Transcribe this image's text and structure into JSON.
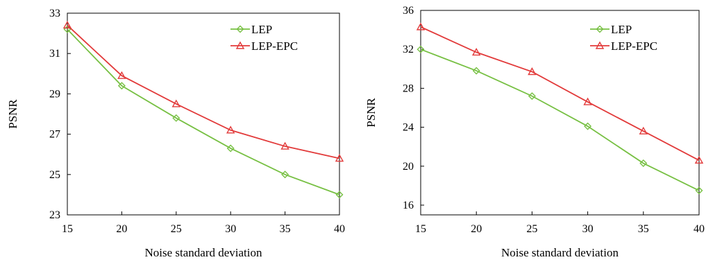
{
  "colors": {
    "lep": "#77c043",
    "lep_epc": "#e23a3a",
    "axis": "#000000"
  },
  "chart_data": [
    {
      "type": "line",
      "xlabel": "Noise standard deviation",
      "ylabel": "PSNR",
      "x": [
        15,
        20,
        25,
        30,
        35,
        40
      ],
      "xlim": [
        15,
        40
      ],
      "ylim": [
        23,
        33
      ],
      "xticks": [
        "15",
        "20",
        "25",
        "30",
        "35",
        "40"
      ],
      "yticks": [
        "23",
        "25",
        "27",
        "29",
        "31",
        "33"
      ],
      "grid": false,
      "legend_position": "top-right",
      "series": [
        {
          "name": "LEP",
          "marker": "diamond",
          "values": [
            32.2,
            29.4,
            27.8,
            26.3,
            25.0,
            24.0
          ]
        },
        {
          "name": "LEP-EPC",
          "marker": "triangle",
          "values": [
            32.4,
            29.9,
            28.5,
            27.2,
            26.4,
            25.8
          ]
        }
      ]
    },
    {
      "type": "line",
      "xlabel": "Noise standard deviation",
      "ylabel": "PSNR",
      "x": [
        15,
        20,
        25,
        30,
        35,
        40
      ],
      "xlim": [
        15,
        40
      ],
      "ylim": [
        15,
        36
      ],
      "xticks": [
        "15",
        "20",
        "25",
        "30",
        "35",
        "40"
      ],
      "yticks": [
        "16",
        "20",
        "24",
        "28",
        "32",
        "36"
      ],
      "grid": false,
      "legend_position": "top-right",
      "series": [
        {
          "name": "LEP",
          "marker": "diamond",
          "values": [
            32.0,
            29.8,
            27.2,
            24.1,
            20.3,
            17.5
          ]
        },
        {
          "name": "LEP-EPC",
          "marker": "triangle",
          "values": [
            34.3,
            31.7,
            29.7,
            26.6,
            23.6,
            20.6
          ]
        }
      ]
    }
  ]
}
